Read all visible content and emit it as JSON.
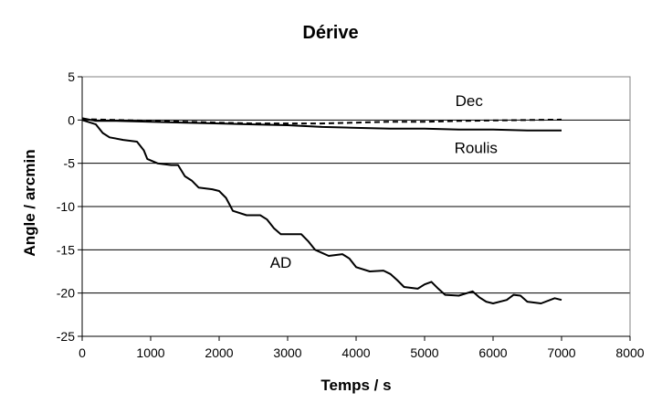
{
  "chart_data": {
    "type": "line",
    "title": "Dérive",
    "xlabel": "Temps / s",
    "ylabel": "Angle / arcmin",
    "xlim": [
      0,
      8000
    ],
    "ylim": [
      -25,
      5
    ],
    "x_ticks": [
      0,
      1000,
      2000,
      3000,
      4000,
      5000,
      6000,
      7000,
      8000
    ],
    "y_ticks": [
      5,
      0,
      -5,
      -10,
      -15,
      -20,
      -25
    ],
    "grid": "horizontal",
    "legend": "none",
    "series": [
      {
        "name": "Dec",
        "style": "dashed",
        "points": [
          [
            0,
            0.1
          ],
          [
            500,
            0.0
          ],
          [
            1000,
            -0.1
          ],
          [
            1500,
            -0.2
          ],
          [
            2000,
            -0.3
          ],
          [
            2500,
            -0.4
          ],
          [
            3000,
            -0.4
          ],
          [
            3500,
            -0.4
          ],
          [
            4000,
            -0.3
          ],
          [
            4500,
            -0.2
          ],
          [
            5000,
            -0.2
          ],
          [
            5500,
            -0.1
          ],
          [
            6000,
            -0.05
          ],
          [
            6500,
            0.0
          ],
          [
            7000,
            0.05
          ]
        ]
      },
      {
        "name": "Roulis",
        "style": "solid",
        "points": [
          [
            0,
            0.2
          ],
          [
            200,
            -0.1
          ],
          [
            500,
            -0.1
          ],
          [
            1000,
            -0.2
          ],
          [
            1500,
            -0.3
          ],
          [
            2000,
            -0.4
          ],
          [
            2500,
            -0.5
          ],
          [
            3000,
            -0.6
          ],
          [
            3500,
            -0.8
          ],
          [
            4000,
            -0.9
          ],
          [
            4500,
            -1.0
          ],
          [
            5000,
            -1.0
          ],
          [
            5500,
            -1.1
          ],
          [
            6000,
            -1.1
          ],
          [
            6500,
            -1.2
          ],
          [
            7000,
            -1.2
          ]
        ]
      },
      {
        "name": "AD",
        "style": "solid",
        "points": [
          [
            0,
            0
          ],
          [
            200,
            -0.5
          ],
          [
            300,
            -1.5
          ],
          [
            400,
            -2.0
          ],
          [
            600,
            -2.3
          ],
          [
            800,
            -2.5
          ],
          [
            900,
            -3.5
          ],
          [
            950,
            -4.5
          ],
          [
            1100,
            -5.0
          ],
          [
            1300,
            -5.2
          ],
          [
            1400,
            -5.2
          ],
          [
            1500,
            -6.5
          ],
          [
            1600,
            -7.0
          ],
          [
            1700,
            -7.8
          ],
          [
            1900,
            -8.0
          ],
          [
            2000,
            -8.2
          ],
          [
            2100,
            -9.0
          ],
          [
            2200,
            -10.5
          ],
          [
            2400,
            -11.0
          ],
          [
            2600,
            -11.0
          ],
          [
            2700,
            -11.5
          ],
          [
            2800,
            -12.5
          ],
          [
            2900,
            -13.2
          ],
          [
            3200,
            -13.2
          ],
          [
            3300,
            -14.0
          ],
          [
            3400,
            -15.0
          ],
          [
            3600,
            -15.7
          ],
          [
            3800,
            -15.5
          ],
          [
            3900,
            -16.0
          ],
          [
            4000,
            -17.0
          ],
          [
            4200,
            -17.5
          ],
          [
            4400,
            -17.4
          ],
          [
            4500,
            -17.8
          ],
          [
            4600,
            -18.5
          ],
          [
            4700,
            -19.3
          ],
          [
            4900,
            -19.5
          ],
          [
            5000,
            -19.0
          ],
          [
            5100,
            -18.7
          ],
          [
            5200,
            -19.5
          ],
          [
            5300,
            -20.2
          ],
          [
            5500,
            -20.3
          ],
          [
            5700,
            -19.8
          ],
          [
            5800,
            -20.5
          ],
          [
            5900,
            -21.0
          ],
          [
            6000,
            -21.2
          ],
          [
            6200,
            -20.8
          ],
          [
            6300,
            -20.2
          ],
          [
            6400,
            -20.3
          ],
          [
            6500,
            -21.0
          ],
          [
            6700,
            -21.2
          ],
          [
            6900,
            -20.6
          ],
          [
            7000,
            -20.8
          ]
        ]
      }
    ],
    "annotations": [
      {
        "text": "Dec",
        "x": 5650,
        "y": 1.6
      },
      {
        "text": "Roulis",
        "x": 5750,
        "y": -3.8
      },
      {
        "text": "AD",
        "x": 2900,
        "y": -17.1
      }
    ]
  }
}
